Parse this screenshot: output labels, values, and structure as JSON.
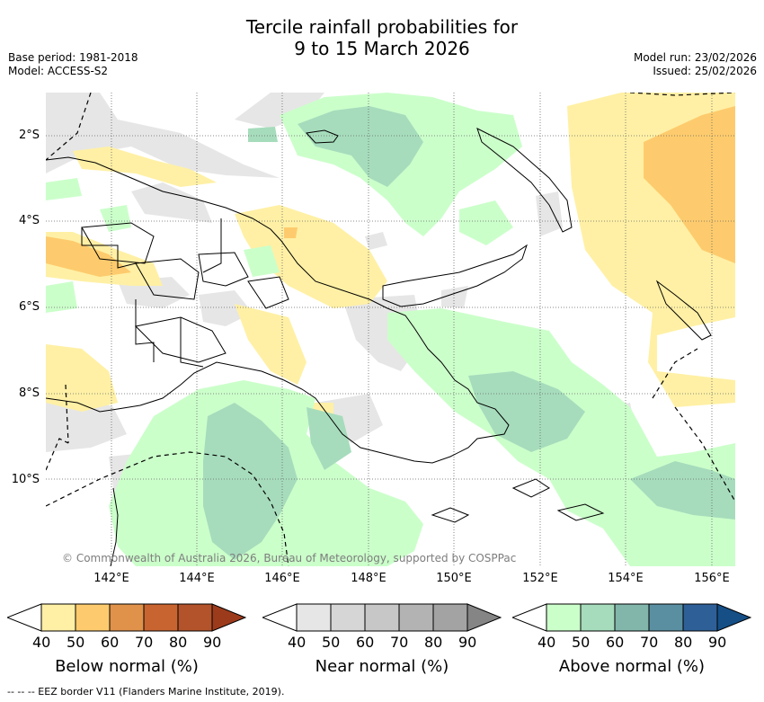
{
  "title": {
    "line1": "Tercile rainfall probabilities for",
    "line2": "9 to 15 March 2026"
  },
  "meta_left": {
    "base_period": "Base period: 1981-2018",
    "model": "Model: ACCESS-S2"
  },
  "meta_right": {
    "model_run": "Model run: 23/02/2026",
    "issued": "Issued: 25/02/2026"
  },
  "map": {
    "copyright": "© Commonwealth of Australia 2026, Bureau of Meteorology, supported by COSPPac",
    "lat_labels": [
      "2°S",
      "4°S",
      "6°S",
      "8°S",
      "10°S"
    ],
    "lon_labels": [
      "142°E",
      "144°E",
      "146°E",
      "148°E",
      "150°E",
      "152°E",
      "154°E",
      "156°E"
    ],
    "gridlines": true
  },
  "colorbars": [
    {
      "title": "Below normal (%)",
      "ticks": [
        "40",
        "50",
        "60",
        "70",
        "80",
        "90"
      ],
      "colors": [
        "#fff0a5",
        "#fdcb6d",
        "#e0924a",
        "#c8642f",
        "#b3532b",
        "#9c3b1c"
      ]
    },
    {
      "title": "Near normal (%)",
      "ticks": [
        "40",
        "50",
        "60",
        "70",
        "80",
        "90"
      ],
      "colors": [
        "#e6e6e6",
        "#d6d6d6",
        "#c7c7c7",
        "#b3b3b3",
        "#a3a3a3",
        "#858585"
      ]
    },
    {
      "title": "Above normal (%)",
      "ticks": [
        "40",
        "50",
        "60",
        "70",
        "80",
        "90"
      ],
      "colors": [
        "#cbffca",
        "#a6dcbc",
        "#82b6ab",
        "#5a8fa1",
        "#2e5f97",
        "#154f86"
      ]
    }
  ],
  "footer": "--  --  -- EEZ border V11 (Flanders Marine Institute, 2019)."
}
